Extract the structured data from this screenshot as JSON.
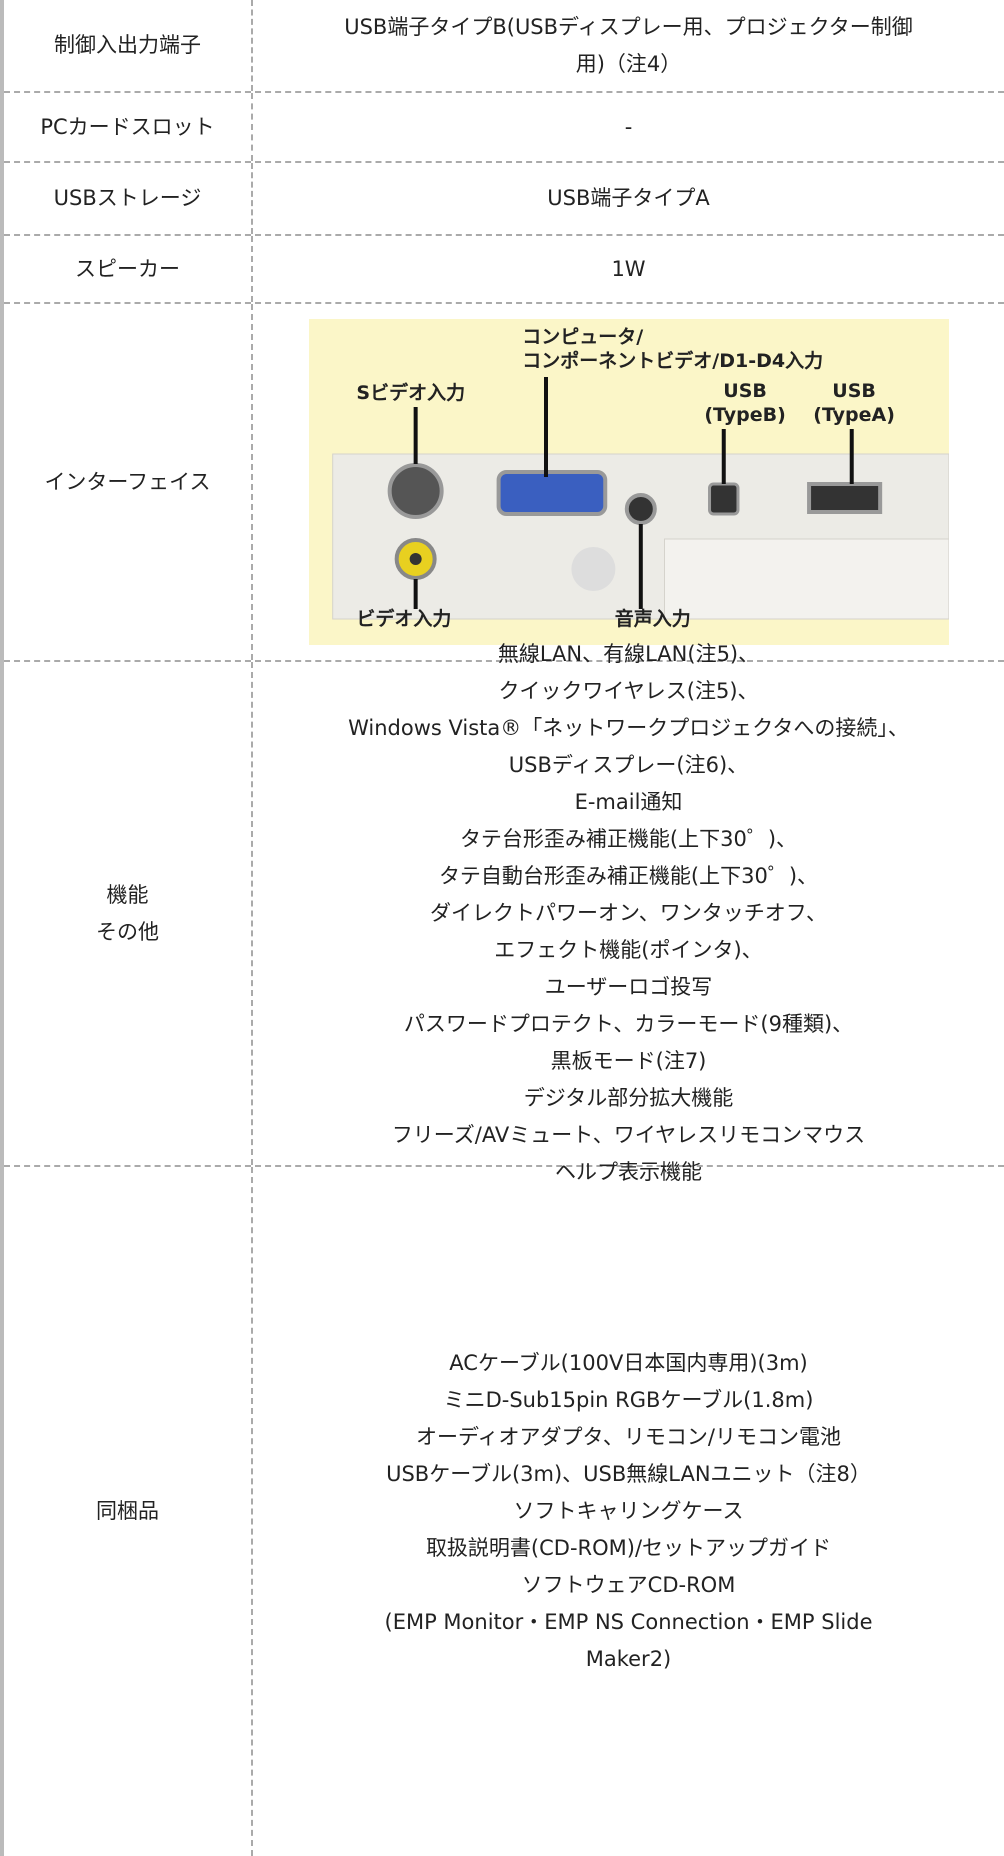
{
  "table": {
    "rows": [
      {
        "label": "制御入出力端子",
        "lines": [
          "USB端子タイプB(USBディスプレー用、プロジェクター制御",
          "用)（注4）"
        ]
      },
      {
        "label": "PCカードスロット",
        "lines": [
          "-"
        ]
      },
      {
        "label": "USBストレージ",
        "lines": [
          "USB端子タイプA"
        ]
      },
      {
        "label": "スピーカー",
        "lines": [
          "1W"
        ]
      },
      {
        "label": "インターフェイス",
        "image": {
          "computer": [
            "コンピュータ/",
            "コンポーネントビデオ/D1-D4入力"
          ],
          "s_video": "Sビデオ入力",
          "usb_b": [
            "USB",
            "(TypeB)"
          ],
          "usb_a": [
            "USB",
            "(TypeA)"
          ],
          "video": "ビデオ入力",
          "audio": "音声入力"
        }
      },
      {
        "label": [
          "機能",
          "その他"
        ],
        "lines": [
          "無線LAN、有線LAN(注5)、",
          "クイックワイヤレス(注5)、",
          "Windows Vista®「ネットワークプロジェクタへの接続」、",
          "USBディスプレー(注6)、",
          "E-mail通知",
          "タテ台形歪み補正機能(上下30゜)、",
          "タテ自動台形歪み補正機能(上下30゜)、",
          "ダイレクトパワーオン、ワンタッチオフ、",
          "エフェクト機能(ポインタ)、",
          "ユーザーロゴ投写",
          "パスワードプロテクト、カラーモード(9種類)、",
          "黒板モード(注7)",
          "デジタル部分拡大機能",
          "フリーズ/AVミュート、ワイヤレスリモコンマウス",
          "ヘルプ表示機能"
        ]
      },
      {
        "label": "同梱品",
        "lines": [
          "ACケーブル(100V日本国内専用)(3m)",
          "ミニD-Sub15pin RGBケーブル(1.8m)",
          "オーディオアダプタ、リモコン/リモコン電池",
          "USBケーブル(3m)、USB無線LANユニット（注8）",
          "ソフトキャリングケース",
          "取扱説明書(CD-ROM)/セットアップガイド",
          "ソフトウェアCD-ROM",
          "(EMP Monitor・EMP NS Connection・EMP Slide",
          "Maker2)"
        ]
      }
    ]
  }
}
